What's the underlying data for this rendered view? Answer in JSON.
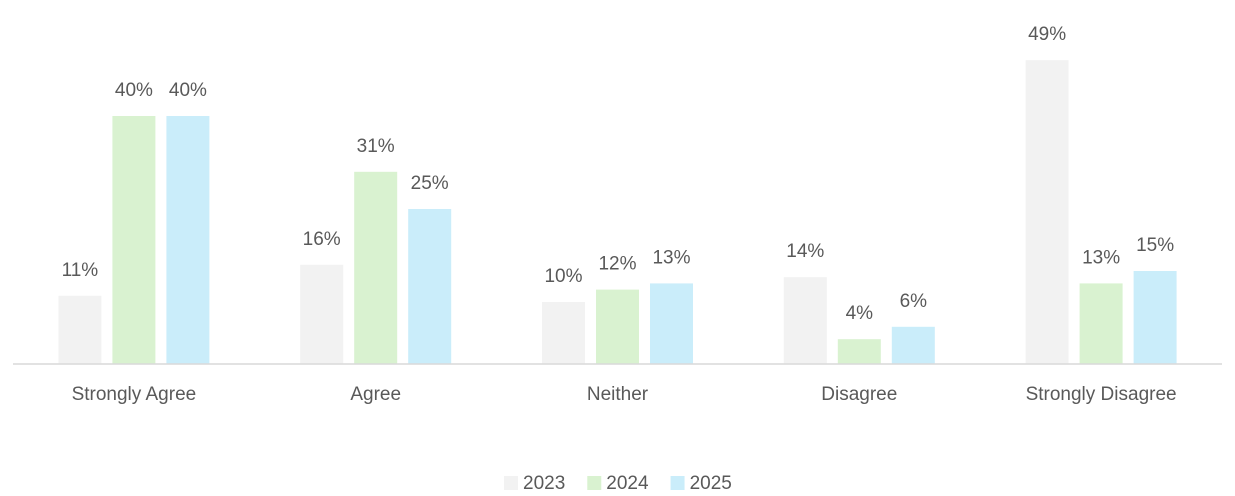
{
  "chart_data": {
    "type": "bar",
    "categories": [
      "Strongly Agree",
      "Agree",
      "Neither",
      "Disagree",
      "Strongly Disagree"
    ],
    "series": [
      {
        "name": "2023",
        "color": "#f2f2f2",
        "values": [
          11,
          16,
          10,
          14,
          49
        ],
        "value_labels": [
          "11%",
          "16%",
          "10%",
          "14%",
          "49%"
        ]
      },
      {
        "name": "2024",
        "color": "#d9f2d0",
        "values": [
          40,
          31,
          12,
          4,
          13
        ],
        "value_labels": [
          "40%",
          "31%",
          "12%",
          "4%",
          "13%"
        ]
      },
      {
        "name": "2025",
        "color": "#caedfa",
        "values": [
          40,
          25,
          13,
          6,
          15
        ],
        "value_labels": [
          "40%",
          "25%",
          "13%",
          "6%",
          "15%"
        ]
      }
    ],
    "ylim": [
      0,
      50
    ],
    "legend": "bottom"
  }
}
